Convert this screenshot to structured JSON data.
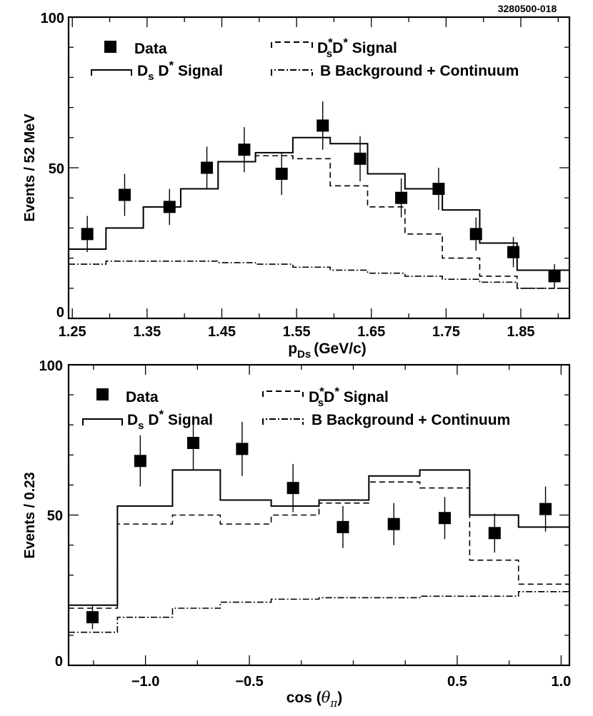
{
  "figure_id": "3280500-018",
  "chart_data": [
    {
      "type": "histogram",
      "xlabel_main": "p",
      "xlabel_sub": "Ds",
      "xlabel_unit": "(GeV/c)",
      "ylabel": "Events / 52 MeV",
      "xlim": [
        1.245,
        1.915
      ],
      "ylim": [
        0,
        100
      ],
      "xticks": [
        1.25,
        1.35,
        1.45,
        1.55,
        1.65,
        1.75,
        1.85
      ],
      "xtick_labels": [
        "1.25",
        "1.35",
        "1.45",
        "1.55",
        "1.65",
        "1.75",
        "1.85"
      ],
      "yticks": [
        0,
        50,
        100
      ],
      "ytick_labels": [
        "0",
        "50",
        "100"
      ],
      "legend": {
        "data": "Data",
        "dsd_main": "D",
        "dsd_sub": "s",
        "dsd_rest": " D",
        "dsd_sup": "*",
        "dsd_label": "Signal",
        "dsstar_main": "D",
        "dsstar_sup": "*",
        "dsstar_sub": "s",
        "dsstar_rest": "D",
        "dsstar_sup2": "*",
        "dsstar_label": "Signal",
        "bkg": "B Background + Continuum"
      },
      "data_points": [
        {
          "x": 1.27,
          "y": 28,
          "err": 6
        },
        {
          "x": 1.32,
          "y": 41,
          "err": 7
        },
        {
          "x": 1.38,
          "y": 37,
          "err": 6
        },
        {
          "x": 1.43,
          "y": 50,
          "err": 7
        },
        {
          "x": 1.48,
          "y": 56,
          "err": 7.5
        },
        {
          "x": 1.53,
          "y": 48,
          "err": 7
        },
        {
          "x": 1.585,
          "y": 64,
          "err": 8
        },
        {
          "x": 1.635,
          "y": 53,
          "err": 7.5
        },
        {
          "x": 1.69,
          "y": 40,
          "err": 6.5
        },
        {
          "x": 1.74,
          "y": 43,
          "err": 7
        },
        {
          "x": 1.79,
          "y": 28,
          "err": 5.5
        },
        {
          "x": 1.84,
          "y": 22,
          "err": 5
        },
        {
          "x": 1.895,
          "y": 14,
          "err": 4
        }
      ],
      "bin_edges": [
        1.245,
        1.295,
        1.345,
        1.395,
        1.445,
        1.495,
        1.545,
        1.595,
        1.645,
        1.695,
        1.745,
        1.795,
        1.845,
        1.915
      ],
      "dsd_signal": [
        23,
        30,
        37,
        43,
        52,
        55,
        60,
        58,
        48,
        43,
        36,
        25,
        16
      ],
      "dsstar_signal": [
        23,
        30,
        37,
        43,
        52,
        54,
        53,
        44,
        37,
        28,
        20,
        14,
        10
      ],
      "background": [
        18,
        19,
        19,
        19,
        18.5,
        18,
        17,
        16,
        15,
        14,
        13,
        12,
        10
      ]
    },
    {
      "type": "histogram",
      "xlabel_main": "cos (",
      "xlabel_sym": "θ",
      "xlabel_sub": "π",
      "xlabel_close": ")",
      "ylabel": "Events / 0.23",
      "xlim": [
        -1.37,
        1.04
      ],
      "ylim": [
        0,
        100
      ],
      "xticks": [
        -1.0,
        -0.5,
        0.5,
        1.0
      ],
      "xtick_labels": [
        "−1.0",
        "−0.5",
        "0.5",
        "1.0"
      ],
      "xticks_minor": [
        -1.25,
        -0.75,
        -0.25,
        0.0,
        0.25,
        0.75
      ],
      "yticks": [
        0,
        50,
        100
      ],
      "ytick_labels": [
        "0",
        "50",
        "100"
      ],
      "legend": {
        "data": "Data",
        "dsd_main": "D",
        "dsd_sub": "s",
        "dsd_rest": " D",
        "dsd_sup": "*",
        "dsd_label": "Signal",
        "dsstar_main": "D",
        "dsstar_sup": "*",
        "dsstar_sub": "s",
        "dsstar_rest": "D",
        "dsstar_sup2": "*",
        "dsstar_label": "Signal",
        "bkg": "B Background + Continuum"
      },
      "data_points": [
        {
          "x": -1.255,
          "y": 16,
          "err": 4
        },
        {
          "x": -1.025,
          "y": 68,
          "err": 8.5
        },
        {
          "x": -0.77,
          "y": 74,
          "err": 9
        },
        {
          "x": -0.535,
          "y": 72,
          "err": 9
        },
        {
          "x": -0.29,
          "y": 59,
          "err": 8
        },
        {
          "x": -0.05,
          "y": 46,
          "err": 7
        },
        {
          "x": 0.195,
          "y": 47,
          "err": 7
        },
        {
          "x": 0.44,
          "y": 49,
          "err": 7
        },
        {
          "x": 0.68,
          "y": 44,
          "err": 6.5
        },
        {
          "x": 0.925,
          "y": 52,
          "err": 7.5
        }
      ],
      "bin_edges": [
        -1.37,
        -1.135,
        -0.87,
        -0.64,
        -0.395,
        -0.165,
        0.075,
        0.32,
        0.56,
        0.795,
        1.04
      ],
      "dsd_signal": [
        20,
        53,
        65,
        55,
        53,
        55,
        63,
        65,
        50,
        46
      ],
      "dsstar_signal": [
        19,
        47,
        50,
        47,
        50,
        54,
        61,
        59,
        35,
        27
      ],
      "background": [
        11,
        16,
        19,
        21,
        22,
        22.5,
        22.5,
        23,
        23,
        24.5
      ]
    }
  ]
}
